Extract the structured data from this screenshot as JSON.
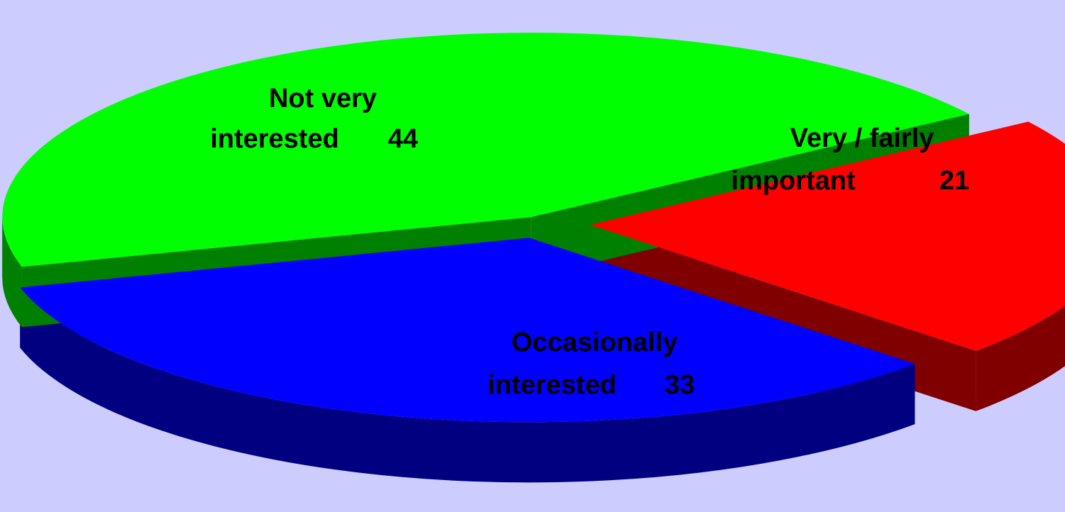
{
  "chart_data": {
    "type": "pie",
    "style": "3d-exploded",
    "legend": "none",
    "slices": [
      {
        "label_line1": "Very / fairly",
        "label_line2": "important",
        "value": 21,
        "color": "#ff0000",
        "side_color": "#800000"
      },
      {
        "label_line1": "Occasionally",
        "label_line2": "interested",
        "value": 33,
        "color": "#0000ff",
        "side_color": "#000080"
      },
      {
        "label_line1": "Not very",
        "label_line2": "interested",
        "value": 44,
        "color": "#00ff00",
        "side_color": "#008000"
      }
    ],
    "background": "#ccccff"
  }
}
